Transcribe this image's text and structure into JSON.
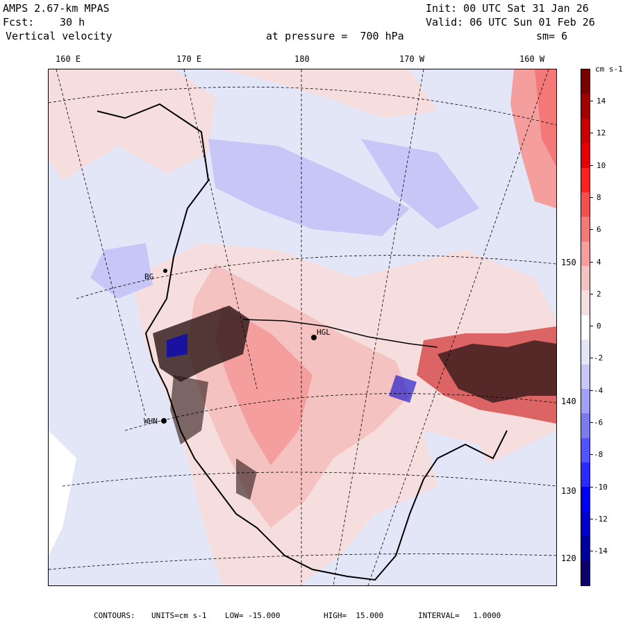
{
  "header": {
    "model": "AMPS 2.67-km MPAS",
    "init": "Init: 00 UTC Sat 31 Jan 26",
    "fcst_label": "Fcst:",
    "fcst_value": "30 h",
    "valid": "Valid: 06 UTC Sun 01 Feb 26",
    "field": "Vertical velocity",
    "pressure": "at pressure =  700 hPa",
    "smoothing": "sm= 6"
  },
  "longitude_labels": [
    "160 E",
    "170 E",
    "180",
    "170 W",
    "160 W"
  ],
  "latitude_labels": [
    "150 W",
    "140 W",
    "130 W",
    "120 W"
  ],
  "station_labels": [
    "BG",
    "HGL",
    "WHN"
  ],
  "colorbar": {
    "units": "cm s-1",
    "levels": [
      14,
      12,
      10,
      8,
      6,
      4,
      2,
      0,
      -2,
      -4,
      -6,
      -8,
      -10,
      -12,
      -14
    ],
    "colors": [
      "#0c006b",
      "#00009c",
      "#0000cc",
      "#0000f5",
      "#2a2aff",
      "#5252ff",
      "#7b7bf0",
      "#a0a0f5",
      "#c6c6f7",
      "#e3e6f7",
      "#ffffff",
      "#f7dede",
      "#f5c2c2",
      "#f59e9e",
      "#f57878",
      "#f54e4e",
      "#ff2020",
      "#e80000",
      "#c80000",
      "#a50000",
      "#7a0000"
    ]
  },
  "footer": {
    "contours_label": "CONTOURS:",
    "units_text": "UNITS=cm s-1",
    "low": "LOW= -15.000",
    "high": "HIGH=  15.000",
    "interval": "INTERVAL=   1.0000"
  }
}
